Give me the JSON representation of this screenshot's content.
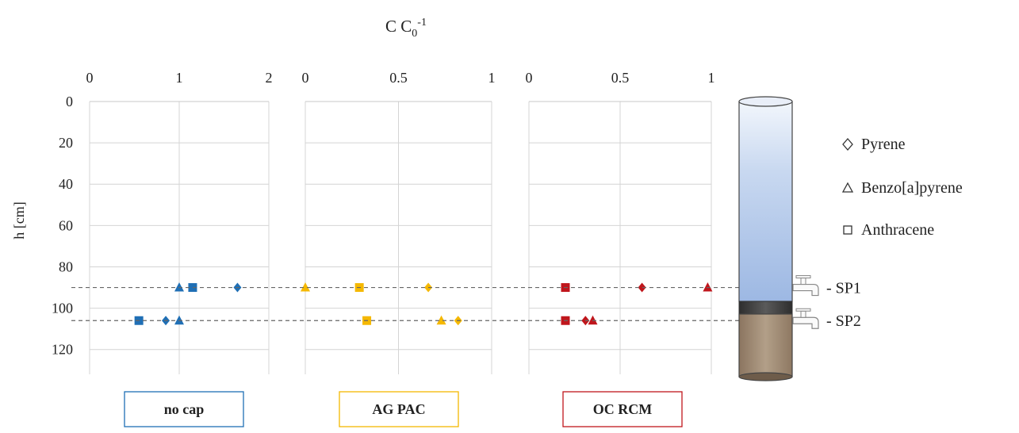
{
  "chart_data": {
    "type": "scatter",
    "title": "C C0-1",
    "title_parts": {
      "main": "C C",
      "sub": "0",
      "sup": "-1"
    },
    "ylabel": "h [cm]",
    "ylim": [
      0,
      132
    ],
    "y_inverted": true,
    "y_ticks": [
      "0",
      "20",
      "40",
      "60",
      "80",
      "100",
      "120"
    ],
    "grid": true,
    "legend": {
      "position": "right",
      "entries": [
        {
          "name": "Pyrene",
          "marker": "diamond"
        },
        {
          "name": "Benzo[a]pyrene",
          "marker": "triangle"
        },
        {
          "name": "Anthracene",
          "marker": "square"
        }
      ]
    },
    "sampling_ports": [
      {
        "label": "- SP1",
        "h": 90
      },
      {
        "label": "- SP2",
        "h": 106
      }
    ],
    "panels": [
      {
        "label": "no cap",
        "color": "#1f6fb5",
        "xlim": [
          0,
          2
        ],
        "x_ticks": [
          "0",
          "1",
          "2"
        ],
        "series": [
          {
            "name": "Pyrene",
            "points": [
              {
                "x": 1.65,
                "y": 90
              },
              {
                "x": 0.85,
                "y": 106
              }
            ]
          },
          {
            "name": "Benzo[a]pyrene",
            "points": [
              {
                "x": 1.0,
                "y": 90
              },
              {
                "x": 1.0,
                "y": 106
              }
            ]
          },
          {
            "name": "Anthracene",
            "points": [
              {
                "x": 1.15,
                "y": 90
              },
              {
                "x": 0.55,
                "y": 106
              }
            ]
          }
        ]
      },
      {
        "label": "AG PAC",
        "color": "#f5b800",
        "xlim": [
          0,
          1
        ],
        "x_ticks": [
          "0",
          "0.5",
          "1"
        ],
        "series": [
          {
            "name": "Pyrene",
            "points": [
              {
                "x": 0.66,
                "y": 90
              },
              {
                "x": 0.82,
                "y": 106
              }
            ]
          },
          {
            "name": "Benzo[a]pyrene",
            "points": [
              {
                "x": 0.0,
                "y": 90
              },
              {
                "x": 0.73,
                "y": 106
              }
            ]
          },
          {
            "name": "Anthracene",
            "points": [
              {
                "x": 0.29,
                "y": 90
              },
              {
                "x": 0.33,
                "y": 106
              }
            ]
          }
        ]
      },
      {
        "label": "OC RCM",
        "color": "#c0161c",
        "xlim": [
          0,
          1
        ],
        "x_ticks": [
          "0",
          "0.5",
          "1"
        ],
        "series": [
          {
            "name": "Pyrene",
            "points": [
              {
                "x": 0.62,
                "y": 90
              },
              {
                "x": 0.31,
                "y": 106
              }
            ]
          },
          {
            "name": "Benzo[a]pyrene",
            "points": [
              {
                "x": 0.98,
                "y": 90
              },
              {
                "x": 0.35,
                "y": 106
              }
            ]
          },
          {
            "name": "Anthracene",
            "points": [
              {
                "x": 0.2,
                "y": 90
              },
              {
                "x": 0.2,
                "y": 106
              }
            ]
          }
        ]
      }
    ]
  }
}
